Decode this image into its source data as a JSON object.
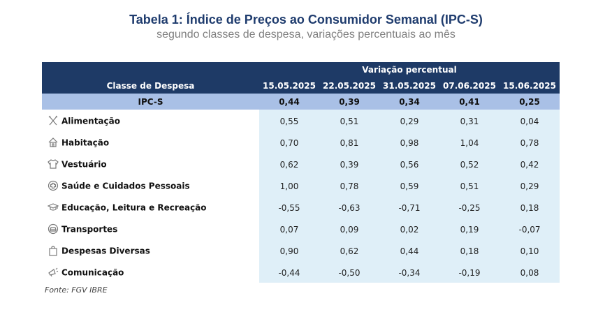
{
  "title": "Tabela 1: Índice de Preços ao Consumidor Semanal (IPC-S)",
  "subtitle": "segundo classes de despesa, variações percentuais ao mês",
  "table": {
    "group_header": "Variação percentual",
    "category_header": "Classe de Despesa",
    "dates": [
      "15.05.2025",
      "22.05.2025",
      "31.05.2025",
      "07.06.2025",
      "15.06.2025"
    ],
    "ipc": {
      "label": "IPC-S",
      "values": [
        "0,44",
        "0,39",
        "0,34",
        "0,41",
        "0,25"
      ]
    },
    "rows": [
      {
        "label": "Alimentação",
        "icon": "utensils-icon",
        "values": [
          "0,55",
          "0,51",
          "0,29",
          "0,31",
          "0,04"
        ]
      },
      {
        "label": "Habitação",
        "icon": "house-icon",
        "values": [
          "0,70",
          "0,81",
          "0,98",
          "1,04",
          "0,78"
        ]
      },
      {
        "label": "Vestuário",
        "icon": "shirt-icon",
        "values": [
          "0,62",
          "0,39",
          "0,56",
          "0,52",
          "0,42"
        ]
      },
      {
        "label": "Saúde e Cuidados Pessoais",
        "icon": "health-cross-icon",
        "values": [
          "1,00",
          "0,78",
          "0,59",
          "0,51",
          "0,29"
        ]
      },
      {
        "label": "Educação, Leitura e Recreação",
        "icon": "graduation-cap-icon",
        "values": [
          "-0,55",
          "-0,63",
          "-0,71",
          "-0,25",
          "0,18"
        ]
      },
      {
        "label": "Transportes",
        "icon": "car-icon",
        "values": [
          "0,07",
          "0,09",
          "0,02",
          "0,19",
          "-0,07"
        ]
      },
      {
        "label": "Despesas Diversas",
        "icon": "shopping-bag-icon",
        "values": [
          "0,90",
          "0,62",
          "0,44",
          "0,18",
          "0,10"
        ]
      },
      {
        "label": "Comunicação",
        "icon": "megaphone-icon",
        "values": [
          "-0,44",
          "-0,50",
          "-0,34",
          "-0,19",
          "0,08"
        ]
      }
    ]
  },
  "source": "Fonte: FGV IBRE",
  "colors": {
    "title": "#1f3c6e",
    "header_bg": "#1e3a66",
    "ipc_row_bg": "#a9c0e6",
    "value_cell_bg": "#dfeff8"
  }
}
